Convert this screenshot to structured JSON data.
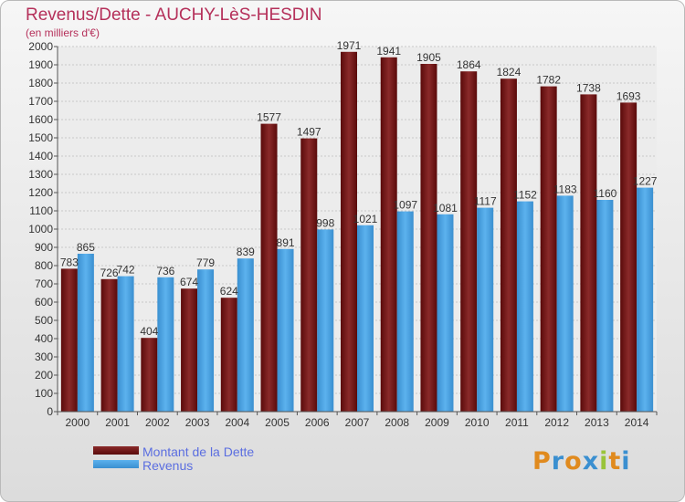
{
  "title": "Revenus/Dette - AUCHY-LèS-HESDIN",
  "subtitle": "(en milliers d'€)",
  "colors": {
    "dette": "#7b1414",
    "revenus": "#4fa3e6",
    "title": "#b5305a",
    "legend_text": "#5b6ee0"
  },
  "legend": [
    {
      "label": "Montant de la Dette",
      "color": "#7b1414"
    },
    {
      "label": "Revenus",
      "color": "#4fa3e6"
    }
  ],
  "logo": {
    "letters": [
      "P",
      "r",
      "o",
      "x",
      "i",
      "t",
      "i"
    ],
    "colors": [
      "#e08a1e",
      "#3a8fd0",
      "#e08a1e",
      "#3a8fd0",
      "#9ac43a",
      "#e08a1e",
      "#3a8fd0"
    ]
  },
  "chart_data": {
    "type": "bar",
    "categories": [
      "2000",
      "2001",
      "2002",
      "2003",
      "2004",
      "2005",
      "2006",
      "2007",
      "2008",
      "2009",
      "2010",
      "2011",
      "2012",
      "2013",
      "2014"
    ],
    "series": [
      {
        "name": "Montant de la Dette",
        "values": [
          783,
          726,
          404,
          674,
          624,
          1577,
          1497,
          1971,
          1941,
          1905,
          1864,
          1824,
          1782,
          1738,
          1693
        ]
      },
      {
        "name": "Revenus",
        "values": [
          865,
          742,
          736,
          779,
          839,
          891,
          998,
          1021,
          1097,
          1081,
          1117,
          1152,
          1183,
          1160,
          1227
        ]
      }
    ],
    "ylim": [
      0,
      2000
    ],
    "yticks": [
      0,
      100,
      200,
      300,
      400,
      500,
      600,
      700,
      800,
      900,
      1000,
      1100,
      1200,
      1300,
      1400,
      1500,
      1600,
      1700,
      1800,
      1900,
      2000
    ],
    "grid": true,
    "legend_position": "bottom-left"
  }
}
